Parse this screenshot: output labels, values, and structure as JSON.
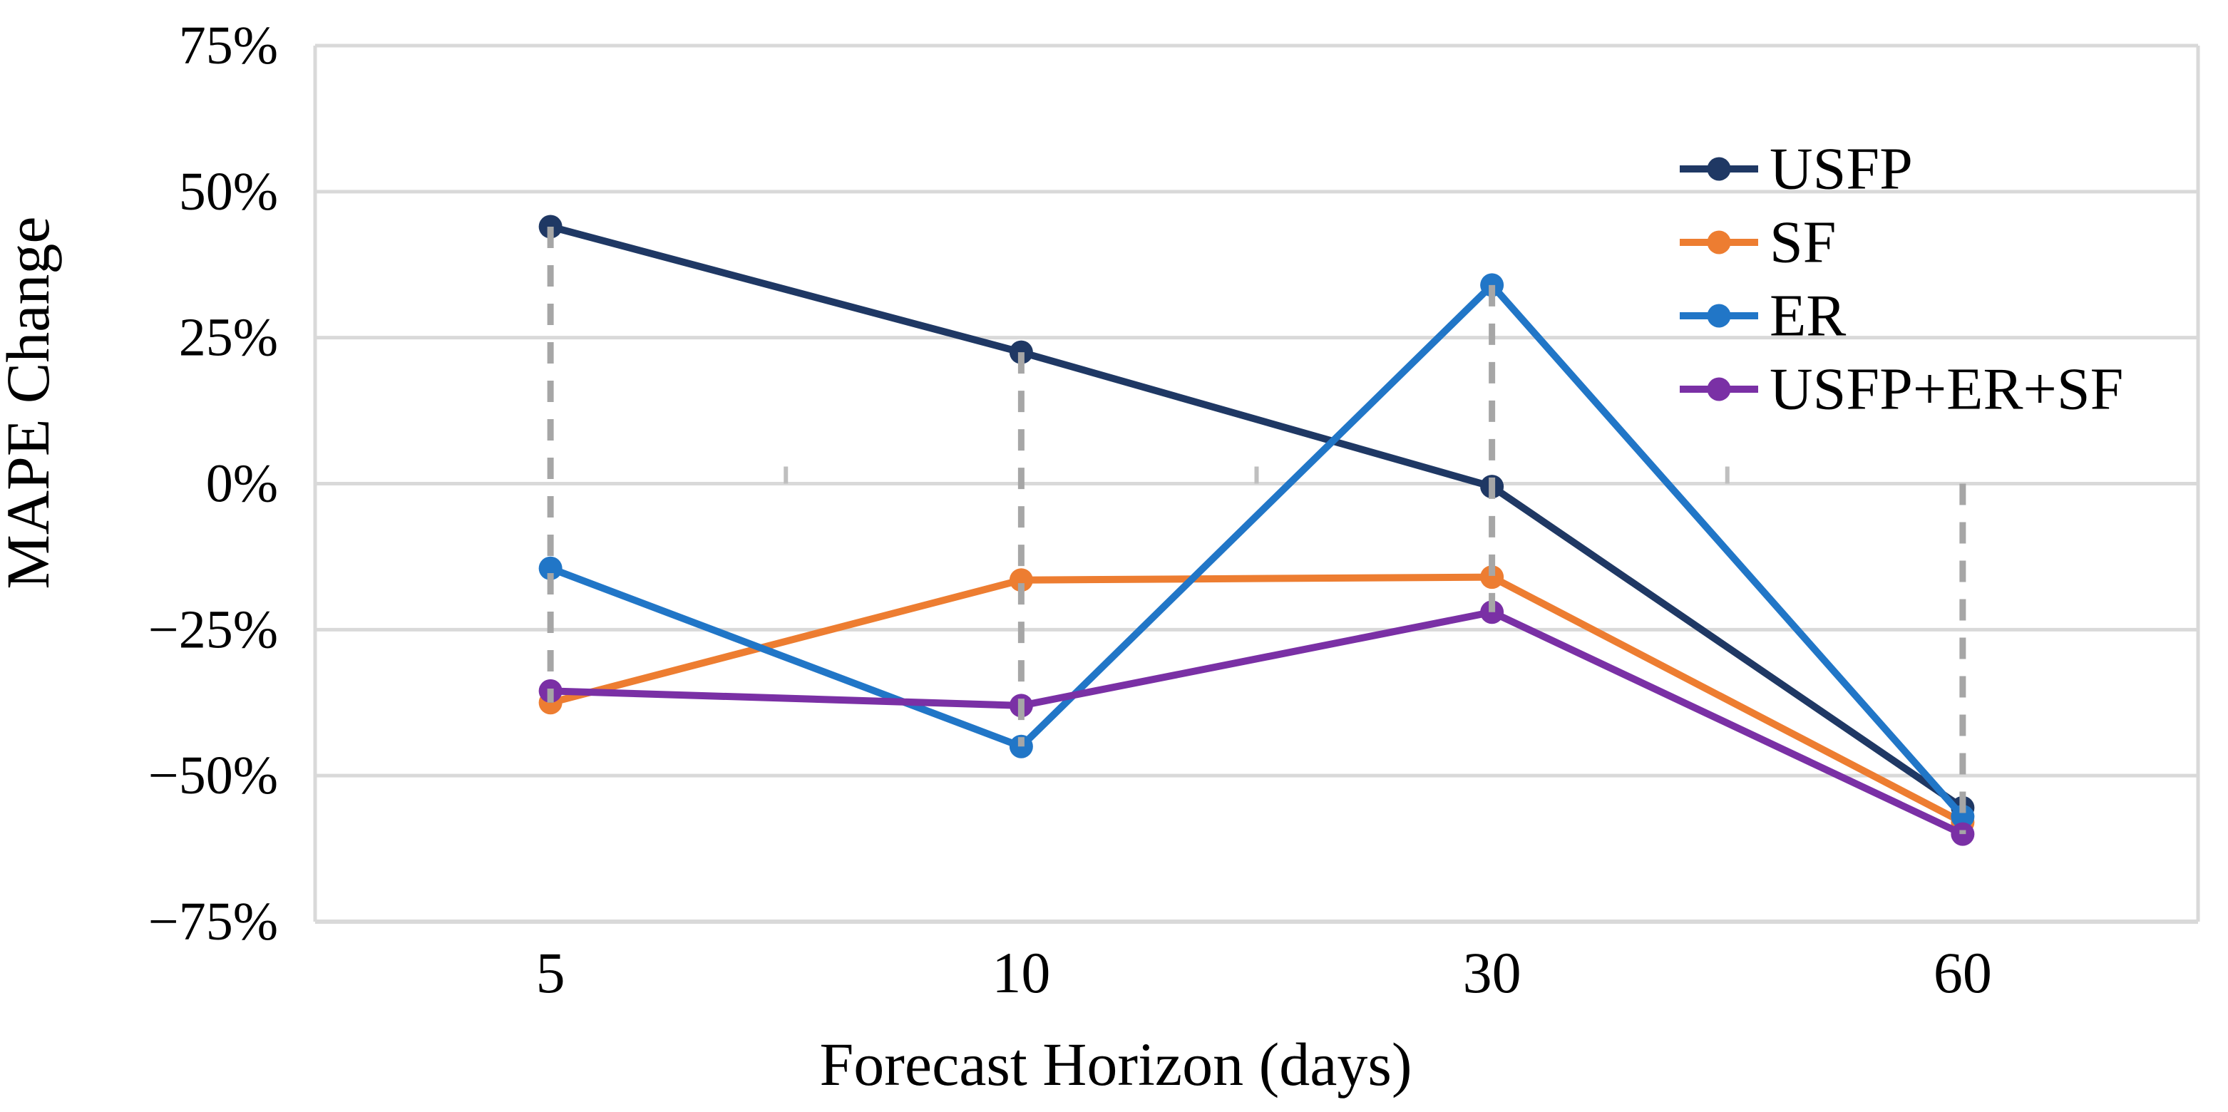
{
  "chart_data": {
    "type": "line",
    "title": "",
    "xlabel": "Forecast Horizon (days)",
    "ylabel": "MAPE Change",
    "categories": [
      "5",
      "10",
      "30",
      "60"
    ],
    "y_tick_labels": [
      "75%",
      "50%",
      "25%",
      "0%",
      "−25%",
      "−50%",
      "−75%"
    ],
    "y_tick_values_percent": [
      75,
      50,
      25,
      0,
      -25,
      -50,
      -75
    ],
    "ylim_percent": [
      -75,
      75
    ],
    "grid": "horizontal-only",
    "legend_position": "inside-top-right",
    "marker": "circle",
    "series": [
      {
        "name": "USFP",
        "color": "#1F3864",
        "values_percent": [
          44,
          22.5,
          -0.5,
          -55.5
        ]
      },
      {
        "name": "SF",
        "color": "#ED7D31",
        "values_percent": [
          -37.5,
          -16.5,
          -16,
          -58
        ]
      },
      {
        "name": "ER",
        "color": "#2176C7",
        "values_percent": [
          -14.5,
          -45,
          34,
          -57
        ]
      },
      {
        "name": "USFP+ER+SF",
        "color": "#7A30A5",
        "values_percent": [
          -35.5,
          -38,
          -22,
          -60
        ]
      }
    ],
    "drop_lines": {
      "style": "dashed",
      "color": "#A6A6A6",
      "description": "vertical dashed drop lines from each data point to the category axis at 0%"
    }
  },
  "colors": {
    "background": "#FFFFFF",
    "gridline": "#D9D9D9",
    "axis_line": "#D9D9D9",
    "category_boundary_tick": "#BFBFBF",
    "drop_line": "#A6A6A6",
    "text": "#000000"
  }
}
